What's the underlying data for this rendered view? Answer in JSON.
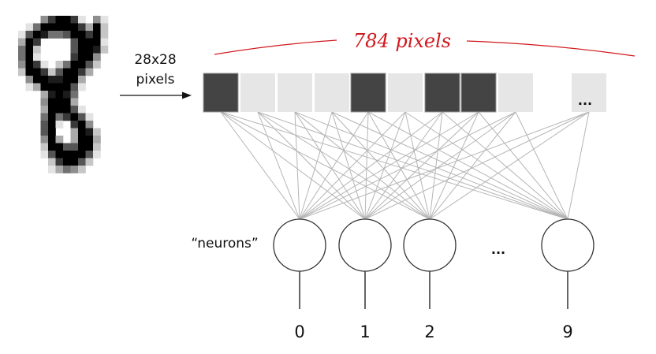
{
  "input_label": {
    "line1": "28x28",
    "line2": "pixels"
  },
  "pixel_count_label": "784 pixels",
  "ellipsis_pixels": "...",
  "ellipsis_neurons": "...",
  "neurons_label": "“neurons”",
  "pixel_row": [
    "dark",
    "light",
    "light",
    "light",
    "dark",
    "light",
    "dark",
    "dark",
    "light",
    "light"
  ],
  "neurons": [
    {
      "label": "0"
    },
    {
      "label": "1"
    },
    {
      "label": "2"
    },
    {
      "label": "9"
    }
  ],
  "colors": {
    "dark_pixel": "#444444",
    "light_pixel": "#e6e6e6",
    "connection": "#b5b5b5",
    "annotation": "#d0191e"
  },
  "digit_image_values_0to9": [
    [
      0,
      0,
      0,
      4,
      7,
      9,
      9,
      7,
      1,
      0,
      4,
      1,
      0
    ],
    [
      0,
      1,
      5,
      9,
      9,
      9,
      9,
      9,
      7,
      3,
      9,
      2,
      0
    ],
    [
      1,
      6,
      9,
      8,
      5,
      5,
      6,
      9,
      9,
      7,
      9,
      2,
      0
    ],
    [
      3,
      9,
      7,
      0,
      0,
      0,
      0,
      6,
      9,
      9,
      9,
      1,
      0
    ],
    [
      5,
      9,
      2,
      0,
      0,
      0,
      0,
      6,
      9,
      9,
      8,
      2,
      0
    ],
    [
      5,
      9,
      1,
      0,
      0,
      0,
      0,
      7,
      9,
      9,
      4,
      0,
      0
    ],
    [
      4,
      9,
      7,
      1,
      0,
      2,
      5,
      9,
      9,
      6,
      2,
      0,
      0
    ],
    [
      2,
      9,
      9,
      7,
      2,
      6,
      9,
      9,
      7,
      3,
      0,
      0,
      0
    ],
    [
      0,
      4,
      9,
      9,
      8,
      8,
      9,
      9,
      3,
      0,
      0,
      0,
      0
    ],
    [
      0,
      1,
      3,
      9,
      9,
      9,
      9,
      6,
      1,
      0,
      0,
      0,
      0
    ],
    [
      0,
      0,
      0,
      3,
      8,
      9,
      8,
      5,
      0,
      0,
      0,
      0,
      0
    ],
    [
      0,
      0,
      0,
      4,
      9,
      9,
      9,
      3,
      0,
      0,
      0,
      0,
      0
    ],
    [
      0,
      0,
      0,
      3,
      9,
      9,
      9,
      6,
      1,
      0,
      0,
      0,
      0
    ],
    [
      0,
      0,
      0,
      5,
      9,
      5,
      7,
      9,
      6,
      1,
      0,
      0,
      0
    ],
    [
      0,
      0,
      0,
      6,
      9,
      1,
      0,
      7,
      9,
      4,
      0,
      0,
      0
    ],
    [
      0,
      0,
      0,
      6,
      9,
      0,
      0,
      3,
      9,
      8,
      2,
      0,
      0
    ],
    [
      0,
      0,
      0,
      4,
      9,
      3,
      0,
      3,
      9,
      9,
      3,
      0,
      0
    ],
    [
      0,
      0,
      0,
      2,
      9,
      9,
      6,
      6,
      9,
      9,
      2,
      0,
      0
    ],
    [
      0,
      0,
      0,
      1,
      6,
      9,
      9,
      9,
      9,
      6,
      1,
      0,
      0
    ],
    [
      0,
      0,
      0,
      0,
      2,
      7,
      9,
      9,
      6,
      2,
      0,
      0,
      0
    ],
    [
      0,
      0,
      0,
      0,
      1,
      3,
      5,
      4,
      2,
      0,
      0,
      0,
      0
    ]
  ]
}
